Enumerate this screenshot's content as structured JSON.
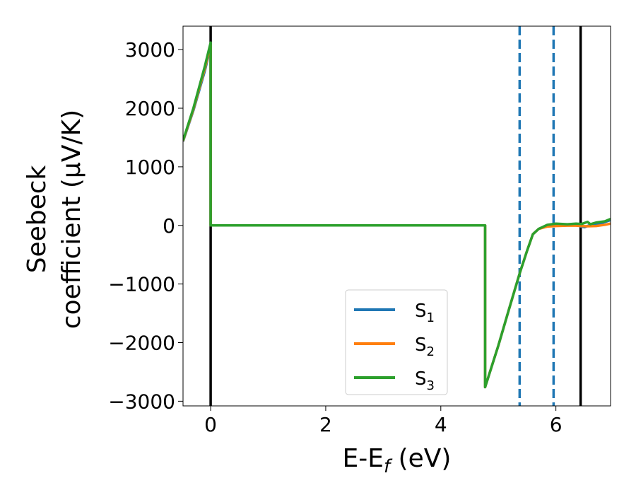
{
  "chart_data": {
    "type": "line",
    "title": "",
    "xlabel": "E-E",
    "xlabel_sub": "f",
    "xlabel_unit": " (eV)",
    "ylabel_line1": "Seebeck",
    "ylabel_line2": "coefficient  (μV/K)",
    "xlim": [
      -0.48,
      6.95
    ],
    "ylim": [
      -3080,
      3400
    ],
    "xticks": [
      0,
      2,
      4,
      6
    ],
    "yticks": [
      -3000,
      -2000,
      -1000,
      0,
      1000,
      2000,
      3000
    ],
    "xtick_labels": [
      "0",
      "2",
      "4",
      "6"
    ],
    "ytick_labels": [
      "−3000",
      "−2000",
      "−1000",
      "0",
      "1000",
      "2000",
      "3000"
    ],
    "grid": false,
    "legend_position": "lower-center",
    "vlines": [
      {
        "x": 0.0,
        "style": "solid",
        "color": "#000000"
      },
      {
        "x": 5.37,
        "style": "dashed",
        "color": "#1f77b4"
      },
      {
        "x": 5.96,
        "style": "dashed",
        "color": "#1f77b4"
      },
      {
        "x": 6.43,
        "style": "solid",
        "color": "#000000"
      }
    ],
    "series": [
      {
        "name": "S",
        "sub": "1",
        "color": "#1f77b4",
        "points": [
          [
            -0.48,
            1430
          ],
          [
            -0.3,
            1960
          ],
          [
            -0.1,
            2640
          ],
          [
            0.0,
            3050
          ],
          [
            0.0,
            0
          ],
          [
            4.77,
            0
          ],
          [
            4.77,
            -2760
          ],
          [
            5.0,
            -2050
          ],
          [
            5.2,
            -1380
          ],
          [
            5.37,
            -820
          ],
          [
            5.5,
            -430
          ],
          [
            5.6,
            -150
          ],
          [
            5.7,
            -60
          ],
          [
            5.85,
            0
          ],
          [
            6.0,
            20
          ],
          [
            6.2,
            10
          ],
          [
            6.35,
            25
          ],
          [
            6.43,
            -20
          ],
          [
            6.5,
            -30
          ],
          [
            6.6,
            10
          ],
          [
            6.8,
            40
          ],
          [
            6.95,
            90
          ]
        ]
      },
      {
        "name": "S",
        "sub": "2",
        "color": "#ff7f0e",
        "points": [
          [
            -0.48,
            1440
          ],
          [
            -0.3,
            1980
          ],
          [
            -0.1,
            2680
          ],
          [
            0.0,
            3080
          ],
          [
            0.0,
            0
          ],
          [
            4.77,
            0
          ],
          [
            4.77,
            -2760
          ],
          [
            5.0,
            -2050
          ],
          [
            5.2,
            -1380
          ],
          [
            5.37,
            -820
          ],
          [
            5.5,
            -430
          ],
          [
            5.6,
            -150
          ],
          [
            5.7,
            -60
          ],
          [
            5.85,
            -20
          ],
          [
            6.0,
            -10
          ],
          [
            6.2,
            -5
          ],
          [
            6.35,
            -5
          ],
          [
            6.43,
            -10
          ],
          [
            6.55,
            -15
          ],
          [
            6.7,
            -10
          ],
          [
            6.85,
            10
          ],
          [
            6.95,
            30
          ]
        ]
      },
      {
        "name": "S",
        "sub": "3",
        "color": "#2ca02c",
        "points": [
          [
            -0.48,
            1450
          ],
          [
            -0.3,
            2000
          ],
          [
            -0.1,
            2720
          ],
          [
            0.0,
            3120
          ],
          [
            0.0,
            0
          ],
          [
            4.77,
            0
          ],
          [
            4.77,
            -2760
          ],
          [
            5.0,
            -2050
          ],
          [
            5.2,
            -1380
          ],
          [
            5.37,
            -820
          ],
          [
            5.5,
            -430
          ],
          [
            5.6,
            -150
          ],
          [
            5.7,
            -60
          ],
          [
            5.85,
            10
          ],
          [
            6.0,
            30
          ],
          [
            6.2,
            20
          ],
          [
            6.35,
            30
          ],
          [
            6.45,
            25
          ],
          [
            6.55,
            60
          ],
          [
            6.6,
            20
          ],
          [
            6.7,
            50
          ],
          [
            6.85,
            70
          ],
          [
            6.95,
            110
          ]
        ]
      }
    ]
  }
}
